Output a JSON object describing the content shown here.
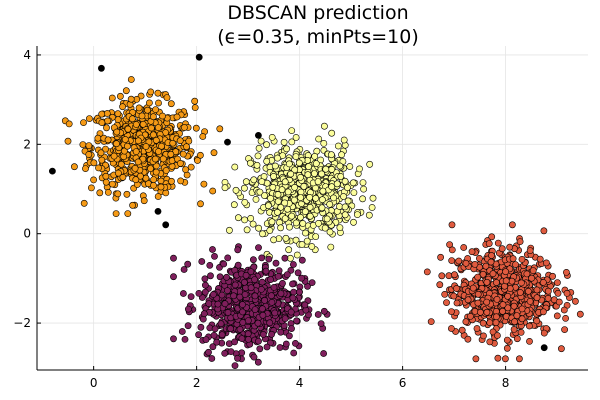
{
  "chart_data": {
    "type": "scatter",
    "title": "DBSCAN prediction",
    "subtitle": "(ϵ=0.35, minPts=10)",
    "xlabel": "",
    "ylabel": "",
    "xlim": [
      -1.1,
      9.6
    ],
    "ylim": [
      -3.05,
      4.2
    ],
    "x_ticks": [
      0,
      2,
      4,
      6,
      8
    ],
    "y_ticks": [
      -2,
      0,
      2,
      4
    ],
    "grid": true,
    "legend": "none",
    "series": [
      {
        "color": "#f59a16",
        "cluster": {
          "center": [
            0.95,
            1.95
          ],
          "sx": 0.5,
          "sy": 0.5,
          "n": 650
        }
      },
      {
        "color": "#fbfd9b",
        "cluster": {
          "center": [
            4.05,
            0.95
          ],
          "sx": 0.5,
          "sy": 0.5,
          "n": 650
        }
      },
      {
        "color": "#7f1f5c",
        "cluster": {
          "center": [
            3.05,
            -1.6
          ],
          "sx": 0.5,
          "sy": 0.5,
          "n": 650
        }
      },
      {
        "color": "#e05b3f",
        "cluster": {
          "center": [
            7.95,
            -1.3
          ],
          "sx": 0.5,
          "sy": 0.5,
          "n": 650
        }
      },
      {
        "color": "#000000",
        "points": [
          [
            0.15,
            3.7
          ],
          [
            2.05,
            3.95
          ],
          [
            -0.8,
            1.4
          ],
          [
            1.25,
            0.5
          ],
          [
            1.4,
            0.2
          ],
          [
            2.6,
            2.05
          ],
          [
            3.2,
            2.2
          ],
          [
            8.75,
            -2.55
          ]
        ]
      }
    ]
  }
}
